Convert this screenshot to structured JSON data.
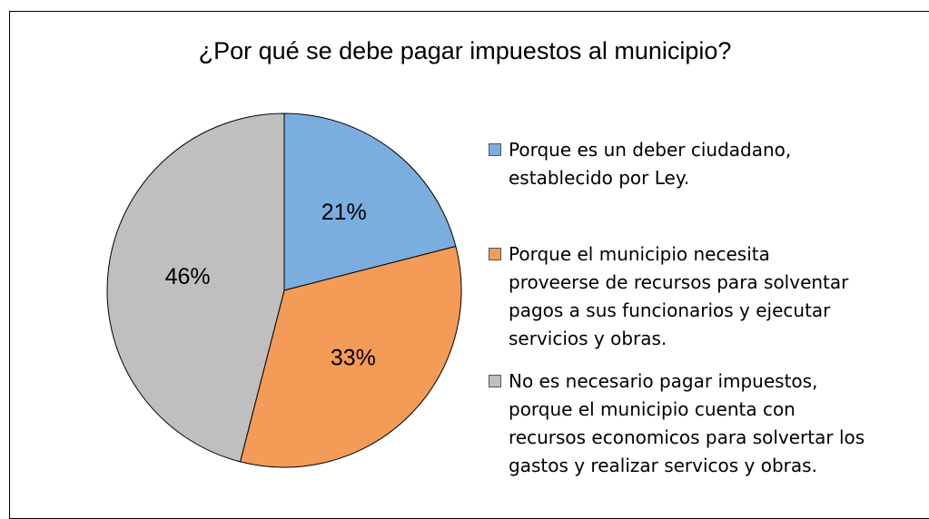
{
  "chart_data": {
    "type": "pie",
    "title": "¿Por qué se debe pagar impuestos al municipio?",
    "categories": [
      "Porque es un deber ciudadano,\nestablecido por Ley.",
      "Porque el municipio necesita\nproveerse de recursos para solventar\npagos a sus funcionarios y ejecutar\nservicios y obras.",
      "No es necesario pagar impuestos,\nporque el municipio cuenta con\nrecursos economicos para solvertar los\ngastos y realizar servicos y obras."
    ],
    "values": [
      21,
      33,
      46
    ],
    "value_labels": [
      "21%",
      "33%",
      "46%"
    ],
    "colors": [
      "#7caddf",
      "#f39b57",
      "#bfbfbf"
    ],
    "legend": "right"
  }
}
